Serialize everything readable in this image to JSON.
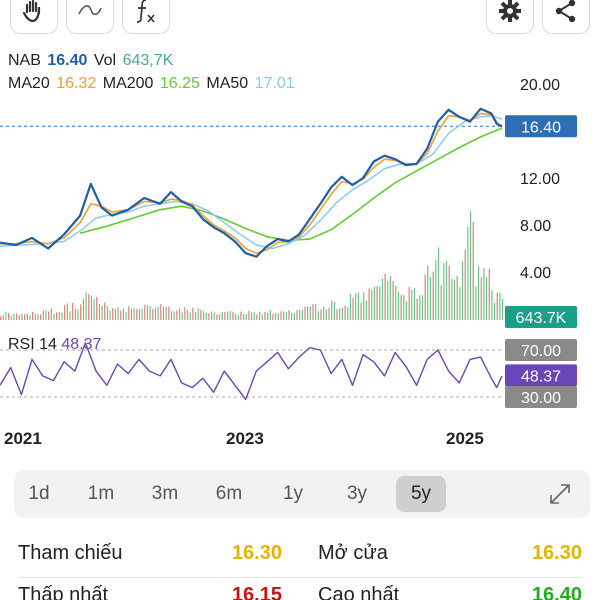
{
  "toolbar": {
    "buttons": [
      {
        "name": "hand-tool-button",
        "icon": "hand-icon"
      },
      {
        "name": "draw-tool-button",
        "icon": "wave-icon"
      },
      {
        "name": "indicator-button",
        "icon": "function-icon"
      },
      {
        "name": "settings-button",
        "icon": "gear-icon"
      },
      {
        "name": "share-button",
        "icon": "share-icon"
      }
    ]
  },
  "legend": {
    "symbol": "NAB",
    "price": "16.40",
    "vol_label": "Vol",
    "vol_value": "643,7K",
    "ma20_label": "MA20",
    "ma20_value": "16.32",
    "ma200_label": "MA200",
    "ma200_value": "16.25",
    "ma50_label": "MA50",
    "ma50_value": "17.01"
  },
  "colors": {
    "price_line": "#1e5fa8",
    "candle_up": "#34a853",
    "candle_down": "#e0453a",
    "ma20": "#f0a030",
    "ma50": "#8cc8f0",
    "ma200": "#66cc33",
    "symbol": "#1e5fa8",
    "vol_value": "#4aaa9a",
    "rsi": "#6a46b8",
    "price_tag": "#2f6db5",
    "volume_tag": "#1aa08a",
    "rsi_tag": "#6a46b8",
    "level_tag": "#8a8a8a",
    "stat_yellow": "#e6b400",
    "stat_red": "#cc1111",
    "stat_green": "#22aa22"
  },
  "chart_data": {
    "type": "line",
    "x_ticks": [
      "2021",
      "2023",
      "2025"
    ],
    "y_ticks": [
      "20.00",
      "12.00",
      "8.00",
      "4.00"
    ],
    "ylim": [
      0.5,
      22
    ],
    "price_tag": "16.40",
    "volume_tag": "643.7K",
    "rsi": {
      "label": "RSI 14",
      "value": "48.37",
      "levels": [
        "70.00",
        "30.00"
      ],
      "ylim": [
        18,
        85
      ]
    },
    "price_series": [
      [
        0,
        6.5
      ],
      [
        3,
        6.3
      ],
      [
        6,
        6.9
      ],
      [
        9,
        6.0
      ],
      [
        12,
        7.2
      ],
      [
        15,
        8.8
      ],
      [
        17,
        11.5
      ],
      [
        19,
        9.5
      ],
      [
        21,
        8.8
      ],
      [
        24,
        9.3
      ],
      [
        27,
        10.3
      ],
      [
        30,
        9.8
      ],
      [
        32,
        10.8
      ],
      [
        34,
        10.0
      ],
      [
        36,
        9.6
      ],
      [
        38,
        8.5
      ],
      [
        40,
        7.8
      ],
      [
        42,
        7.3
      ],
      [
        44,
        6.6
      ],
      [
        46,
        5.6
      ],
      [
        48,
        5.3
      ],
      [
        50,
        6.2
      ],
      [
        52,
        6.8
      ],
      [
        54,
        6.6
      ],
      [
        56,
        7.2
      ],
      [
        58,
        8.5
      ],
      [
        60,
        9.8
      ],
      [
        62,
        11.2
      ],
      [
        64,
        12.1
      ],
      [
        66,
        11.4
      ],
      [
        68,
        12.0
      ],
      [
        70,
        13.4
      ],
      [
        72,
        13.9
      ],
      [
        74,
        13.6
      ],
      [
        76,
        13.1
      ],
      [
        78,
        13.2
      ],
      [
        80,
        14.5
      ],
      [
        82,
        16.8
      ],
      [
        84,
        17.8
      ],
      [
        86,
        17.2
      ],
      [
        88,
        16.8
      ],
      [
        90,
        17.9
      ],
      [
        92,
        17.5
      ],
      [
        93,
        16.6
      ],
      [
        94,
        16.4
      ]
    ],
    "ma20_series": [
      [
        0,
        6.4
      ],
      [
        3,
        6.4
      ],
      [
        6,
        6.6
      ],
      [
        9,
        6.4
      ],
      [
        12,
        6.9
      ],
      [
        15,
        8.2
      ],
      [
        17,
        9.8
      ],
      [
        19,
        9.6
      ],
      [
        21,
        9.1
      ],
      [
        24,
        9.3
      ],
      [
        27,
        10.0
      ],
      [
        30,
        9.9
      ],
      [
        32,
        10.2
      ],
      [
        34,
        10.1
      ],
      [
        36,
        9.7
      ],
      [
        38,
        8.8
      ],
      [
        40,
        8.0
      ],
      [
        42,
        7.5
      ],
      [
        44,
        6.9
      ],
      [
        46,
        6.0
      ],
      [
        48,
        5.6
      ],
      [
        50,
        5.9
      ],
      [
        52,
        6.5
      ],
      [
        54,
        6.6
      ],
      [
        56,
        7.0
      ],
      [
        58,
        8.0
      ],
      [
        60,
        9.3
      ],
      [
        62,
        10.6
      ],
      [
        64,
        11.7
      ],
      [
        66,
        11.5
      ],
      [
        68,
        11.9
      ],
      [
        70,
        12.9
      ],
      [
        72,
        13.6
      ],
      [
        74,
        13.5
      ],
      [
        76,
        13.2
      ],
      [
        78,
        13.2
      ],
      [
        80,
        14.1
      ],
      [
        82,
        16.0
      ],
      [
        84,
        17.3
      ],
      [
        86,
        17.2
      ],
      [
        88,
        16.9
      ],
      [
        90,
        17.5
      ],
      [
        92,
        17.4
      ],
      [
        93,
        16.8
      ],
      [
        94,
        16.3
      ]
    ],
    "ma50_series": [
      [
        0,
        6.2
      ],
      [
        4,
        6.3
      ],
      [
        8,
        6.4
      ],
      [
        12,
        6.6
      ],
      [
        15,
        7.5
      ],
      [
        18,
        8.6
      ],
      [
        21,
        8.9
      ],
      [
        24,
        9.1
      ],
      [
        27,
        9.6
      ],
      [
        30,
        9.8
      ],
      [
        33,
        10.0
      ],
      [
        36,
        9.8
      ],
      [
        39,
        9.2
      ],
      [
        42,
        8.2
      ],
      [
        45,
        7.2
      ],
      [
        48,
        6.3
      ],
      [
        51,
        6.0
      ],
      [
        54,
        6.4
      ],
      [
        57,
        7.1
      ],
      [
        60,
        8.4
      ],
      [
        63,
        9.9
      ],
      [
        66,
        11.0
      ],
      [
        69,
        11.8
      ],
      [
        72,
        12.8
      ],
      [
        75,
        13.2
      ],
      [
        78,
        13.2
      ],
      [
        81,
        14.0
      ],
      [
        84,
        15.8
      ],
      [
        87,
        16.8
      ],
      [
        90,
        17.2
      ],
      [
        92,
        17.3
      ],
      [
        94,
        17.0
      ]
    ],
    "ma200_series": [
      [
        15,
        7.3
      ],
      [
        20,
        7.9
      ],
      [
        25,
        8.6
      ],
      [
        30,
        9.3
      ],
      [
        34,
        9.6
      ],
      [
        38,
        9.2
      ],
      [
        42,
        8.5
      ],
      [
        46,
        7.7
      ],
      [
        50,
        7.0
      ],
      [
        54,
        6.7
      ],
      [
        58,
        6.8
      ],
      [
        62,
        7.6
      ],
      [
        66,
        8.9
      ],
      [
        70,
        10.3
      ],
      [
        74,
        11.6
      ],
      [
        78,
        12.6
      ],
      [
        82,
        13.6
      ],
      [
        86,
        14.6
      ],
      [
        90,
        15.5
      ],
      [
        94,
        16.25
      ]
    ],
    "volume_series": [
      [
        0,
        0.5
      ],
      [
        5,
        0.6
      ],
      [
        10,
        0.8
      ],
      [
        15,
        1.4
      ],
      [
        17,
        2.2
      ],
      [
        20,
        1.0
      ],
      [
        25,
        0.9
      ],
      [
        30,
        1.0
      ],
      [
        35,
        0.8
      ],
      [
        40,
        0.7
      ],
      [
        45,
        0.6
      ],
      [
        50,
        0.7
      ],
      [
        55,
        0.8
      ],
      [
        60,
        1.2
      ],
      [
        65,
        1.6
      ],
      [
        70,
        2.6
      ],
      [
        72,
        3.2
      ],
      [
        75,
        2.0
      ],
      [
        78,
        2.4
      ],
      [
        80,
        4.0
      ],
      [
        82,
        4.8
      ],
      [
        84,
        3.6
      ],
      [
        86,
        2.8
      ],
      [
        87,
        5.5
      ],
      [
        88,
        9.0
      ],
      [
        89,
        4.2
      ],
      [
        90,
        3.0
      ],
      [
        91,
        5.0
      ],
      [
        92,
        2.5
      ],
      [
        93,
        2.0
      ],
      [
        94,
        1.5
      ]
    ],
    "rsi_series": [
      [
        0,
        40
      ],
      [
        2,
        55
      ],
      [
        4,
        32
      ],
      [
        6,
        62
      ],
      [
        8,
        48
      ],
      [
        10,
        44
      ],
      [
        12,
        60
      ],
      [
        14,
        52
      ],
      [
        16,
        76
      ],
      [
        18,
        52
      ],
      [
        20,
        40
      ],
      [
        22,
        58
      ],
      [
        24,
        50
      ],
      [
        26,
        62
      ],
      [
        28,
        52
      ],
      [
        30,
        48
      ],
      [
        32,
        62
      ],
      [
        34,
        42
      ],
      [
        36,
        38
      ],
      [
        38,
        46
      ],
      [
        40,
        34
      ],
      [
        42,
        52
      ],
      [
        44,
        40
      ],
      [
        46,
        28
      ],
      [
        48,
        52
      ],
      [
        50,
        60
      ],
      [
        52,
        68
      ],
      [
        54,
        54
      ],
      [
        56,
        64
      ],
      [
        58,
        72
      ],
      [
        60,
        70
      ],
      [
        62,
        50
      ],
      [
        64,
        62
      ],
      [
        66,
        40
      ],
      [
        68,
        66
      ],
      [
        70,
        60
      ],
      [
        72,
        48
      ],
      [
        74,
        68
      ],
      [
        76,
        56
      ],
      [
        78,
        40
      ],
      [
        80,
        62
      ],
      [
        82,
        70
      ],
      [
        84,
        52
      ],
      [
        86,
        42
      ],
      [
        88,
        62
      ],
      [
        90,
        64
      ],
      [
        92,
        46
      ],
      [
        93,
        38
      ],
      [
        94,
        48
      ]
    ]
  },
  "periods": {
    "items": [
      "1d",
      "1m",
      "3m",
      "6m",
      "1y",
      "3y",
      "5y"
    ],
    "active": "5y"
  },
  "stats": [
    {
      "label": "Tham chiếu",
      "value": "16.30",
      "color": "#e6b400",
      "label2": "Mở cửa",
      "value2": "16.30",
      "color2": "#e6b400"
    },
    {
      "label": "Thấp nhất",
      "value": "16.15",
      "color": "#cc1111",
      "label2": "Cao nhất",
      "value2": "16.40",
      "color2": "#22aa22"
    }
  ]
}
